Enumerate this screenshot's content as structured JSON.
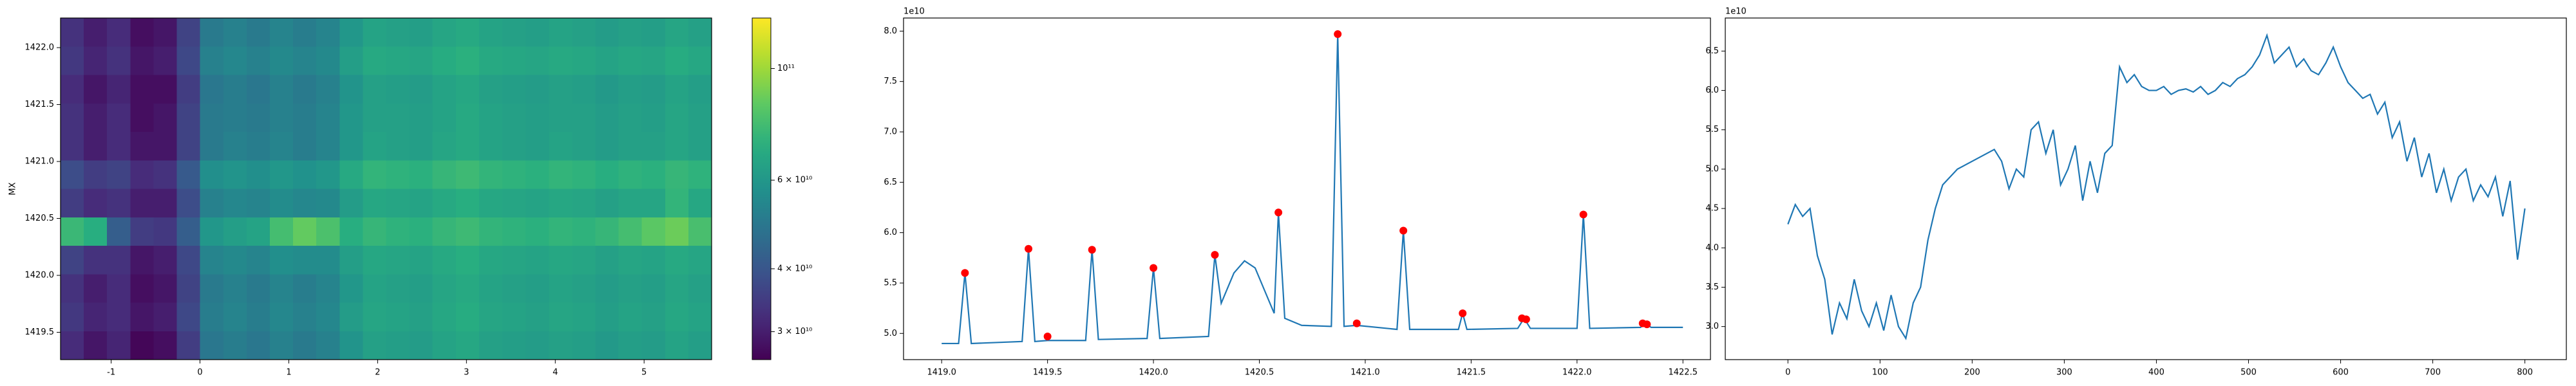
{
  "chart_data": [
    {
      "type": "heatmap",
      "ylabel": "MX",
      "colormap": "viridis",
      "xlim": [
        -1.57,
        5.76
      ],
      "ylim": [
        1419.26,
        1422.26
      ],
      "xticks": [
        -1,
        0,
        1,
        2,
        3,
        4,
        5
      ],
      "yticks": [
        1419.5,
        {
          "value": 1420,
          "label": "1420.0"
        },
        1420.5,
        {
          "value": 1421,
          "label": "1421.0"
        },
        1421.5,
        {
          "value": 1422,
          "label": "1422.0"
        }
      ],
      "z": [
        [
          33000000000.0,
          30000000000.0,
          32000000000.0,
          28000000000.0,
          29000000000.0,
          36000000000.0,
          50000000000.0,
          52000000000.0,
          50000000000.0,
          53000000000.0,
          51000000000.0,
          53000000000.0,
          60000000000.0,
          65000000000.0,
          64000000000.0,
          63000000000.0,
          66000000000.0,
          68000000000.0,
          65000000000.0,
          64000000000.0,
          63000000000.0,
          65000000000.0,
          64000000000.0,
          62000000000.0,
          64000000000.0,
          63000000000.0,
          66000000000.0,
          64000000000.0
        ],
        [
          34000000000.0,
          31000000000.0,
          33000000000.0,
          29000000000.0,
          30000000000.0,
          37000000000.0,
          52000000000.0,
          54000000000.0,
          52000000000.0,
          55000000000.0,
          53000000000.0,
          55000000000.0,
          63000000000.0,
          68000000000.0,
          67000000000.0,
          66000000000.0,
          69000000000.0,
          71000000000.0,
          68000000000.0,
          67000000000.0,
          66000000000.0,
          68000000000.0,
          67000000000.0,
          65000000000.0,
          67000000000.0,
          66000000000.0,
          69000000000.0,
          67000000000.0
        ],
        [
          32000000000.0,
          29000000000.0,
          31000000000.0,
          28000000000.0,
          28000000000.0,
          35000000000.0,
          49000000000.0,
          51000000000.0,
          49000000000.0,
          52000000000.0,
          50000000000.0,
          52000000000.0,
          59000000000.0,
          64000000000.0,
          63000000000.0,
          62000000000.0,
          65000000000.0,
          67000000000.0,
          64000000000.0,
          63000000000.0,
          62000000000.0,
          64000000000.0,
          63000000000.0,
          61000000000.0,
          63000000000.0,
          62000000000.0,
          65000000000.0,
          63000000000.0
        ],
        [
          33000000000.0,
          30000000000.0,
          32000000000.0,
          28000000000.0,
          29000000000.0,
          36000000000.0,
          50000000000.0,
          51000000000.0,
          50000000000.0,
          52000000000.0,
          51000000000.0,
          53000000000.0,
          60000000000.0,
          64000000000.0,
          64000000000.0,
          63000000000.0,
          65000000000.0,
          68000000000.0,
          65000000000.0,
          64000000000.0,
          63000000000.0,
          64000000000.0,
          64000000000.0,
          62000000000.0,
          64000000000.0,
          63000000000.0,
          66000000000.0,
          64000000000.0
        ],
        [
          33000000000.0,
          30000000000.0,
          32000000000.0,
          29000000000.0,
          29000000000.0,
          36000000000.0,
          50000000000.0,
          52000000000.0,
          51000000000.0,
          53000000000.0,
          51000000000.0,
          53000000000.0,
          60000000000.0,
          65000000000.0,
          64000000000.0,
          63000000000.0,
          66000000000.0,
          68000000000.0,
          65000000000.0,
          64000000000.0,
          63000000000.0,
          65000000000.0,
          64000000000.0,
          62000000000.0,
          64000000000.0,
          64000000000.0,
          66000000000.0,
          64000000000.0
        ],
        [
          38000000000.0,
          35000000000.0,
          36000000000.0,
          32000000000.0,
          33000000000.0,
          41000000000.0,
          57000000000.0,
          59000000000.0,
          57000000000.0,
          60000000000.0,
          58000000000.0,
          60000000000.0,
          68000000000.0,
          73000000000.0,
          72000000000.0,
          71000000000.0,
          74000000000.0,
          76000000000.0,
          73000000000.0,
          72000000000.0,
          71000000000.0,
          73000000000.0,
          72000000000.0,
          70000000000.0,
          72000000000.0,
          71000000000.0,
          74000000000.0,
          72000000000.0
        ],
        [
          35000000000.0,
          32000000000.0,
          33000000000.0,
          30000000000.0,
          30000000000.0,
          38000000000.0,
          52000000000.0,
          54000000000.0,
          53000000000.0,
          56000000000.0,
          54000000000.0,
          55000000000.0,
          62000000000.0,
          67000000000.0,
          66000000000.0,
          65000000000.0,
          68000000000.0,
          70000000000.0,
          67000000000.0,
          66000000000.0,
          65000000000.0,
          67000000000.0,
          66000000000.0,
          64000000000.0,
          66000000000.0,
          66000000000.0,
          73000000000.0,
          67000000000.0
        ],
        [
          75000000000.0,
          70000000000.0,
          42000000000.0,
          35000000000.0,
          34000000000.0,
          42000000000.0,
          60000000000.0,
          63000000000.0,
          65000000000.0,
          78000000000.0,
          86000000000.0,
          80000000000.0,
          70000000000.0,
          74000000000.0,
          72000000000.0,
          71000000000.0,
          74000000000.0,
          76000000000.0,
          73000000000.0,
          72000000000.0,
          71000000000.0,
          73000000000.0,
          72000000000.0,
          74000000000.0,
          78000000000.0,
          84000000000.0,
          88000000000.0,
          79000000000.0
        ],
        [
          36000000000.0,
          33000000000.0,
          33000000000.0,
          29000000000.0,
          30000000000.0,
          37000000000.0,
          53000000000.0,
          55000000000.0,
          53000000000.0,
          57000000000.0,
          56000000000.0,
          56000000000.0,
          63000000000.0,
          67000000000.0,
          66000000000.0,
          65000000000.0,
          68000000000.0,
          70000000000.0,
          67000000000.0,
          66000000000.0,
          65000000000.0,
          67000000000.0,
          66000000000.0,
          64000000000.0,
          66000000000.0,
          65000000000.0,
          68000000000.0,
          66000000000.0
        ],
        [
          33000000000.0,
          30000000000.0,
          32000000000.0,
          28000000000.0,
          29000000000.0,
          36000000000.0,
          50000000000.0,
          52000000000.0,
          50000000000.0,
          53000000000.0,
          51000000000.0,
          53000000000.0,
          60000000000.0,
          65000000000.0,
          64000000000.0,
          63000000000.0,
          66000000000.0,
          68000000000.0,
          65000000000.0,
          64000000000.0,
          63000000000.0,
          65000000000.0,
          64000000000.0,
          62000000000.0,
          64000000000.0,
          63000000000.0,
          66000000000.0,
          64000000000.0
        ],
        [
          34000000000.0,
          31000000000.0,
          32000000000.0,
          29000000000.0,
          30000000000.0,
          37000000000.0,
          51000000000.0,
          53000000000.0,
          51000000000.0,
          54000000000.0,
          52000000000.0,
          54000000000.0,
          62000000000.0,
          66000000000.0,
          65000000000.0,
          64000000000.0,
          67000000000.0,
          69000000000.0,
          66000000000.0,
          65000000000.0,
          64000000000.0,
          66000000000.0,
          65000000000.0,
          63000000000.0,
          65000000000.0,
          64000000000.0,
          67000000000.0,
          65000000000.0
        ],
        [
          32000000000.0,
          29000000000.0,
          31000000000.0,
          27000000000.0,
          28000000000.0,
          35000000000.0,
          49000000000.0,
          51000000000.0,
          49000000000.0,
          52000000000.0,
          50000000000.0,
          52000000000.0,
          59000000000.0,
          64000000000.0,
          63000000000.0,
          62000000000.0,
          65000000000.0,
          67000000000.0,
          64000000000.0,
          63000000000.0,
          62000000000.0,
          64000000000.0,
          63000000000.0,
          61000000000.0,
          63000000000.0,
          62000000000.0,
          65000000000.0,
          63000000000.0
        ]
      ],
      "colorbar": {
        "clim": [
          26400000000.0,
          126000000000.0
        ],
        "log": true,
        "ticks": [
          {
            "value": 30000000000.0,
            "label": "3 × 10¹⁰"
          },
          {
            "value": 40000000000.0,
            "label": "4 × 10¹⁰"
          },
          {
            "value": 60000000000.0,
            "label": "6 × 10¹⁰"
          },
          {
            "value": 100000000000.0,
            "label": "10¹¹"
          }
        ]
      }
    },
    {
      "type": "line",
      "color": "#1f77b4",
      "y_offset_label": "1e10",
      "xlim": [
        1418.82,
        1422.63
      ],
      "ylim": [
        4.74,
        8.13
      ],
      "xticks": [
        {
          "value": 1419,
          "label": "1419.0"
        },
        1419.5,
        {
          "value": 1420,
          "label": "1420.0"
        },
        1420.5,
        {
          "value": 1421,
          "label": "1421.0"
        },
        1421.5,
        {
          "value": 1422,
          "label": "1422.0"
        },
        1422.5
      ],
      "yticks": [
        {
          "value": 5,
          "label": "5.0"
        },
        5.5,
        {
          "value": 6,
          "label": "6.0"
        },
        6.5,
        {
          "value": 7,
          "label": "7.0"
        },
        7.5,
        {
          "value": 8,
          "label": "8.0"
        }
      ],
      "x": [
        1419.0,
        1419.08,
        1419.11,
        1419.14,
        1419.38,
        1419.41,
        1419.44,
        1419.5,
        1419.68,
        1419.71,
        1419.74,
        1419.97,
        1420.0,
        1420.03,
        1420.26,
        1420.29,
        1420.32,
        1420.38,
        1420.43,
        1420.48,
        1420.53,
        1420.57,
        1420.59,
        1420.62,
        1420.7,
        1420.84,
        1420.87,
        1420.9,
        1420.96,
        1421.15,
        1421.18,
        1421.21,
        1421.44,
        1421.46,
        1421.48,
        1421.72,
        1421.75,
        1421.78,
        1422.0,
        1422.03,
        1422.06,
        1422.3,
        1422.32,
        1422.35,
        1422.5
      ],
      "values": [
        4.9,
        4.9,
        5.6,
        4.9,
        4.92,
        5.84,
        4.92,
        4.93,
        4.93,
        5.83,
        4.94,
        4.95,
        5.65,
        4.95,
        4.97,
        5.78,
        5.3,
        5.6,
        5.72,
        5.65,
        5.4,
        5.2,
        6.2,
        5.15,
        5.08,
        5.07,
        7.97,
        5.07,
        5.08,
        5.04,
        6.02,
        5.04,
        5.04,
        5.2,
        5.04,
        5.05,
        5.15,
        5.05,
        5.05,
        6.18,
        5.05,
        5.06,
        5.1,
        5.06,
        5.06
      ],
      "markers": {
        "color": "#ff0000",
        "x": [
          1419.11,
          1419.41,
          1419.5,
          1419.71,
          1420.0,
          1420.29,
          1420.59,
          1420.87,
          1420.96,
          1421.18,
          1421.46,
          1421.74,
          1421.76,
          1422.03,
          1422.31,
          1422.33
        ],
        "values": [
          5.6,
          5.84,
          4.97,
          5.83,
          5.65,
          5.78,
          6.2,
          7.97,
          5.1,
          6.02,
          5.2,
          5.15,
          5.14,
          6.18,
          5.1,
          5.09
        ]
      }
    },
    {
      "type": "line",
      "color": "#1f77b4",
      "y_offset_label": "1e10",
      "xlim": [
        -68,
        845
      ],
      "ylim": [
        2.58,
        6.92
      ],
      "xticks": [
        0,
        100,
        200,
        300,
        400,
        500,
        600,
        700,
        800
      ],
      "yticks": [
        {
          "value": 3,
          "label": "3.0"
        },
        3.5,
        {
          "value": 4,
          "label": "4.0"
        },
        4.5,
        {
          "value": 5,
          "label": "5.0"
        },
        5.5,
        {
          "value": 6,
          "label": "6.0"
        },
        6.5
      ],
      "x": [
        0,
        8,
        16,
        24,
        32,
        40,
        48,
        56,
        64,
        72,
        80,
        88,
        96,
        104,
        112,
        120,
        128,
        136,
        144,
        152,
        160,
        168,
        176,
        184,
        192,
        200,
        208,
        216,
        224,
        232,
        240,
        248,
        256,
        264,
        272,
        280,
        288,
        296,
        304,
        312,
        320,
        328,
        336,
        344,
        352,
        360,
        368,
        376,
        384,
        392,
        400,
        408,
        416,
        424,
        432,
        440,
        448,
        456,
        464,
        472,
        480,
        488,
        496,
        504,
        512,
        520,
        528,
        536,
        544,
        552,
        560,
        568,
        576,
        584,
        592,
        600,
        608,
        616,
        624,
        632,
        640,
        648,
        656,
        664,
        672,
        680,
        688,
        696,
        704,
        712,
        720,
        728,
        736,
        744,
        752,
        760,
        768,
        776,
        784,
        792,
        800
      ],
      "values": [
        4.3,
        4.55,
        4.4,
        4.5,
        3.9,
        3.6,
        2.9,
        3.3,
        3.1,
        3.6,
        3.2,
        3.0,
        3.3,
        2.95,
        3.4,
        3.0,
        2.85,
        3.3,
        3.5,
        4.1,
        4.5,
        4.8,
        4.9,
        5.0,
        5.05,
        5.1,
        5.15,
        5.2,
        5.25,
        5.1,
        4.75,
        5.0,
        4.9,
        5.5,
        5.6,
        5.2,
        5.5,
        4.8,
        5.0,
        5.3,
        4.6,
        5.1,
        4.7,
        5.2,
        5.3,
        6.3,
        6.1,
        6.2,
        6.05,
        6.0,
        6.0,
        6.05,
        5.95,
        6.0,
        6.02,
        5.98,
        6.05,
        5.95,
        6.0,
        6.1,
        6.05,
        6.15,
        6.2,
        6.3,
        6.45,
        6.7,
        6.35,
        6.45,
        6.55,
        6.3,
        6.4,
        6.25,
        6.2,
        6.35,
        6.55,
        6.3,
        6.1,
        6.0,
        5.9,
        5.95,
        5.7,
        5.85,
        5.4,
        5.6,
        5.1,
        5.4,
        4.9,
        5.2,
        4.7,
        5.0,
        4.6,
        4.9,
        5.0,
        4.6,
        4.8,
        4.65,
        4.9,
        4.4,
        4.85,
        3.85,
        4.5
      ]
    }
  ]
}
